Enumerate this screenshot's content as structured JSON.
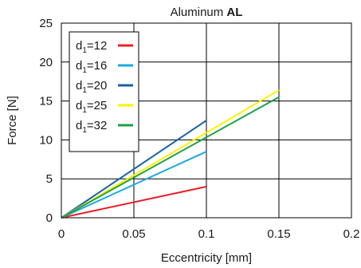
{
  "chart_data": {
    "type": "line",
    "title": {
      "prefix": "Aluminum ",
      "bold": "AL"
    },
    "xlabel": "Eccentricity [mm]",
    "ylabel": "Force [N]",
    "xlim": [
      0,
      0.2
    ],
    "ylim": [
      0,
      25
    ],
    "xticks": [
      0,
      0.05,
      0.1,
      0.15,
      0.2
    ],
    "xtick_labels": [
      "0",
      "0.05",
      "0.1",
      "0.15",
      "0.2"
    ],
    "yticks": [
      0,
      5,
      10,
      15,
      20,
      25
    ],
    "ytick_labels": [
      "0",
      "5",
      "10",
      "15",
      "20",
      "25"
    ],
    "grid": true,
    "legend_position": "top-left",
    "series": [
      {
        "name": "d1=12",
        "name_main": "d",
        "name_sub": "1",
        "name_rest": "=12",
        "color": "#e8202a",
        "x": [
          0,
          0.1
        ],
        "y": [
          0,
          4.0
        ]
      },
      {
        "name": "d1=16",
        "name_main": "d",
        "name_sub": "1",
        "name_rest": "=16",
        "color": "#1ea8e0",
        "x": [
          0,
          0.1
        ],
        "y": [
          0,
          8.5
        ]
      },
      {
        "name": "d1=20",
        "name_main": "d",
        "name_sub": "1",
        "name_rest": "=20",
        "color": "#1760a8",
        "x": [
          0,
          0.1
        ],
        "y": [
          0,
          12.5
        ]
      },
      {
        "name": "d1=25",
        "name_main": "d",
        "name_sub": "1",
        "name_rest": "=25",
        "color": "#fff200",
        "x": [
          0,
          0.15
        ],
        "y": [
          0,
          16.4
        ]
      },
      {
        "name": "d1=32",
        "name_main": "d",
        "name_sub": "1",
        "name_rest": "=32",
        "color": "#1fa04a",
        "x": [
          0,
          0.15
        ],
        "y": [
          0,
          15.5
        ]
      }
    ]
  }
}
